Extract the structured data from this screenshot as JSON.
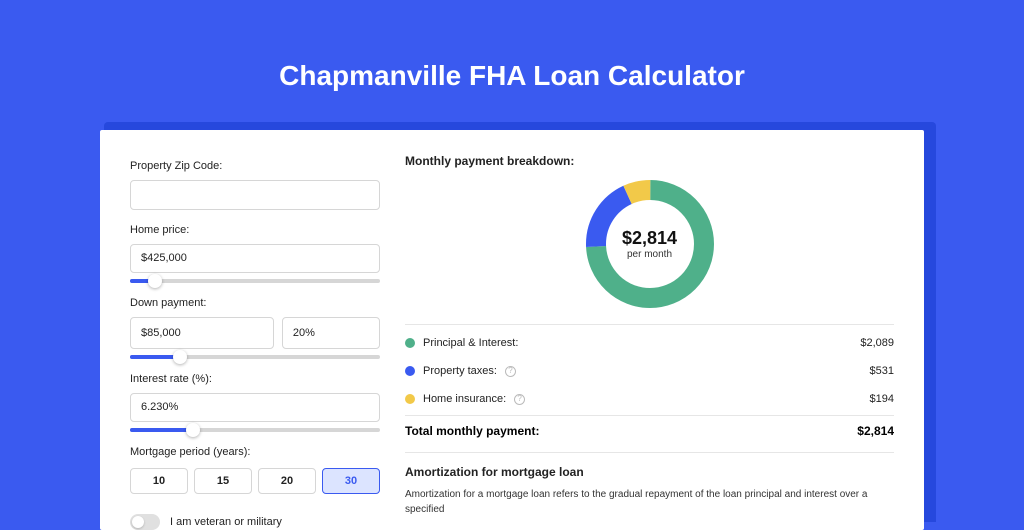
{
  "page": {
    "title": "Chapmanville FHA Loan Calculator",
    "background_color": "#3a5af0"
  },
  "form": {
    "zip": {
      "label": "Property Zip Code:",
      "value": ""
    },
    "home_price": {
      "label": "Home price:",
      "value": "$425,000",
      "slider_percent": 10
    },
    "down_payment": {
      "label": "Down payment:",
      "amount": "$85,000",
      "percent": "20%",
      "slider_percent": 20
    },
    "interest_rate": {
      "label": "Interest rate (%):",
      "value": "6.230%",
      "slider_percent": 25
    },
    "mortgage_period": {
      "label": "Mortgage period (years):",
      "options": [
        "10",
        "15",
        "20",
        "30"
      ],
      "selected": "30"
    },
    "veteran_toggle": {
      "label": "I am veteran or military",
      "on": false
    }
  },
  "breakdown": {
    "title": "Monthly payment breakdown:",
    "center_amount": "$2,814",
    "center_sub": "per month",
    "items": [
      {
        "label": "Principal & Interest:",
        "value": "$2,089",
        "color": "#4fb08a",
        "info": false,
        "fraction": 0.742
      },
      {
        "label": "Property taxes:",
        "value": "$531",
        "color": "#3a5af0",
        "info": true,
        "fraction": 0.189
      },
      {
        "label": "Home insurance:",
        "value": "$194",
        "color": "#f2c949",
        "info": true,
        "fraction": 0.069
      }
    ],
    "total_label": "Total monthly payment:",
    "total_value": "$2,814"
  },
  "amortization": {
    "title": "Amortization for mortgage loan",
    "text": "Amortization for a mortgage loan refers to the gradual repayment of the loan principal and interest over a specified"
  },
  "donut": {
    "stroke_width": 20,
    "radius": 54,
    "size": 128
  }
}
